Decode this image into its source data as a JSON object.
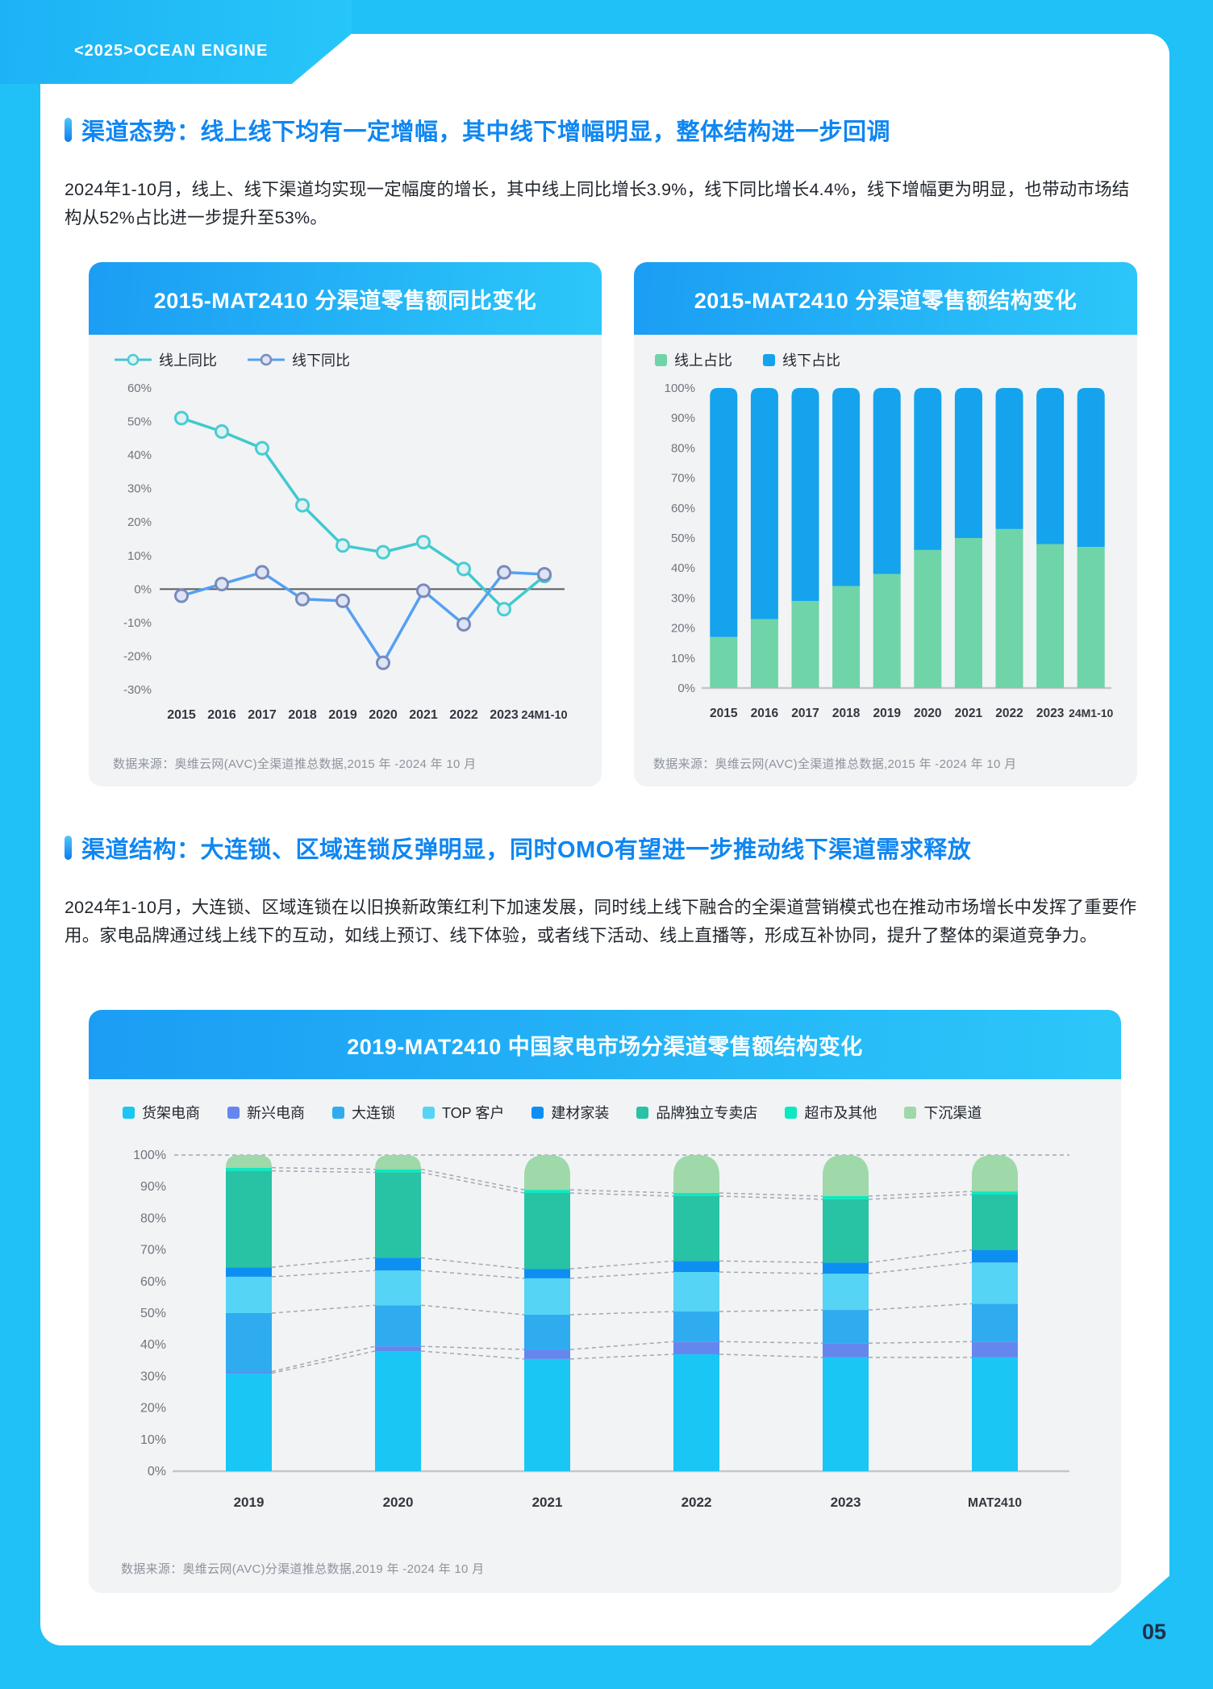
{
  "page": {
    "logo": "<2025>OCEAN ENGINE",
    "page_number": "05",
    "colors": {
      "background_blue": "#1fc1f7",
      "accent_blue": "#0f86f2",
      "card_bg": "#f1f3f5",
      "header_gradient_from": "#1b9df4",
      "header_gradient_to": "#2cc7f9",
      "body_text": "#22272e",
      "source_text": "#8e949c",
      "axis_label": "#70757c",
      "x_label": "#33383f",
      "page_number_text": "#203049"
    }
  },
  "section1": {
    "title": "渠道态势：线上线下均有一定增幅，其中线下增幅明显，整体结构进一步回调",
    "paragraph": "2024年1-10月，线上、线下渠道均实现一定幅度的增长，其中线上同比增长3.9%，线下同比增长4.4%，线下增幅更为明显，也带动市场结构从52%占比进一步提升至53%。"
  },
  "section2": {
    "title": "渠道结构：大连锁、区域连锁反弹明显，同时OMO有望进一步推动线下渠道需求释放",
    "paragraph": "2024年1-10月，大连锁、区域连锁在以旧换新政策红利下加速发展，同时线上线下融合的全渠道营销模式也在推动市场增长中发挥了重要作用。家电品牌通过线上线下的互动，如线上预订、线下体验，或者线下活动、线上直播等，形成互补协同，提升了整体的渠道竞争力。"
  },
  "chart_data": [
    {
      "id": "yoy_line",
      "type": "line",
      "title": "2015-MAT2410 分渠道零售额同比变化",
      "categories": [
        "2015",
        "2016",
        "2017",
        "2018",
        "2019",
        "2020",
        "2021",
        "2022",
        "2023",
        "24M1-10"
      ],
      "series": [
        {
          "name": "线上同比",
          "color": "#41c9cd",
          "marker_stroke": "#49ccd2",
          "marker_fill": "#e0f1f3",
          "values": [
            51,
            47,
            42,
            25,
            13,
            11,
            14,
            6,
            -6,
            3.9
          ]
        },
        {
          "name": "线下同比",
          "color": "#55a0f2",
          "marker_stroke": "#7b8ab8",
          "marker_fill": "#dde4f6",
          "values": [
            -2,
            1.5,
            5,
            -3,
            -3.5,
            -22,
            -0.5,
            -10.5,
            5,
            4.4
          ]
        }
      ],
      "ylim": [
        -30,
        60
      ],
      "ytick_step": 10,
      "grid": false,
      "legend_position": "top-left",
      "source": "数据来源：奥维云网(AVC)全渠道推总数据,2015 年 -2024 年 10 月"
    },
    {
      "id": "share_stack",
      "type": "bar",
      "stacked": true,
      "title": "2015-MAT2410 分渠道零售额结构变化",
      "categories": [
        "2015",
        "2016",
        "2017",
        "2018",
        "2019",
        "2020",
        "2021",
        "2022",
        "2023",
        "24M1-10"
      ],
      "series": [
        {
          "name": "线上占比",
          "color": "#6fd4a8",
          "values": [
            17,
            23,
            29,
            34,
            38,
            46,
            50,
            53,
            48,
            47
          ]
        },
        {
          "name": "线下占比",
          "color": "#14a3ec",
          "values": [
            83,
            77,
            71,
            66,
            62,
            54,
            50,
            47,
            52,
            53
          ]
        }
      ],
      "ylim": [
        0,
        100
      ],
      "ytick_step": 10,
      "grid": false,
      "legend_position": "top-left",
      "source": "数据来源：奥维云网(AVC)全渠道推总数据,2015 年 -2024 年 10 月"
    },
    {
      "id": "channel_stack",
      "type": "bar",
      "stacked": true,
      "connectors": true,
      "title": "2019-MAT2410 中国家电市场分渠道零售额结构变化",
      "categories": [
        "2019",
        "2020",
        "2021",
        "2022",
        "2023",
        "MAT2410"
      ],
      "series": [
        {
          "name": "货架电商",
          "color": "#1ac6f4",
          "values": [
            31,
            38,
            35.5,
            37,
            36,
            36
          ]
        },
        {
          "name": "新兴电商",
          "color": "#6487ee",
          "values": [
            0.5,
            1.5,
            3,
            4,
            4.5,
            5
          ]
        },
        {
          "name": "大连锁",
          "color": "#2fabf0",
          "values": [
            18.5,
            13,
            11,
            9.5,
            10.5,
            12
          ]
        },
        {
          "name": "TOP 客户",
          "color": "#55d4f5",
          "values": [
            11.5,
            11,
            11.5,
            12.5,
            11.5,
            13
          ]
        },
        {
          "name": "建材家装",
          "color": "#0d8ff2",
          "values": [
            3,
            4,
            3,
            3.5,
            3.5,
            4
          ]
        },
        {
          "name": "品牌独立专卖店",
          "color": "#28c2a5",
          "values": [
            30.5,
            27,
            24,
            20.5,
            20,
            17.5
          ]
        },
        {
          "name": "超市及其他",
          "color": "#0ce9c0",
          "values": [
            1,
            1,
            1,
            1,
            1,
            1
          ]
        },
        {
          "name": "下沉渠道",
          "color": "#9fd8a9",
          "values": [
            4,
            4.5,
            11,
            12,
            13,
            11.5
          ]
        }
      ],
      "ylim": [
        0,
        100
      ],
      "ytick_step": 10,
      "grid": false,
      "legend_position": "top-left",
      "source": "数据来源：奥维云网(AVC)分渠道推总数据,2019 年 -2024 年 10 月"
    }
  ]
}
